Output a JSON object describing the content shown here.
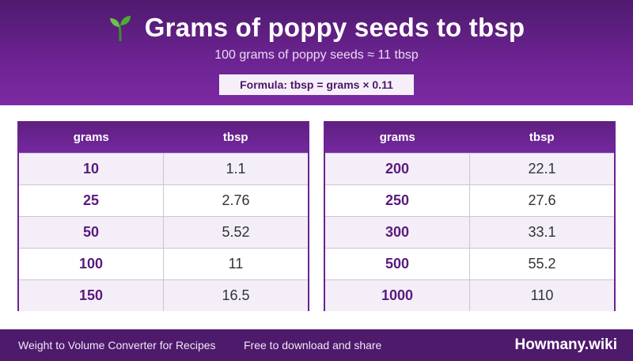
{
  "header": {
    "title": "Grams of poppy seeds to tbsp",
    "icon": "sprout-icon",
    "subtitle": "100 grams of poppy seeds ≈ 11 tbsp",
    "formula": "Formula: tbsp = grams × 0.11"
  },
  "tables": [
    {
      "headers": [
        "grams",
        "tbsp"
      ],
      "rows": [
        [
          "10",
          "1.1"
        ],
        [
          "25",
          "2.76"
        ],
        [
          "50",
          "5.52"
        ],
        [
          "100",
          "11"
        ],
        [
          "150",
          "16.5"
        ]
      ]
    },
    {
      "headers": [
        "grams",
        "tbsp"
      ],
      "rows": [
        [
          "200",
          "22.1"
        ],
        [
          "250",
          "27.6"
        ],
        [
          "300",
          "33.1"
        ],
        [
          "500",
          "55.2"
        ],
        [
          "1000",
          "110"
        ]
      ]
    }
  ],
  "footer": {
    "left": "Weight to Volume Converter for Recipes",
    "middle": "Free to download and share",
    "brand": "Howmany.wiki"
  },
  "colors": {
    "header_bg": "#6b2390",
    "accent": "#5a1a7e",
    "footer_bg": "#4e1a6c",
    "row_alt": "#f4eef8"
  }
}
